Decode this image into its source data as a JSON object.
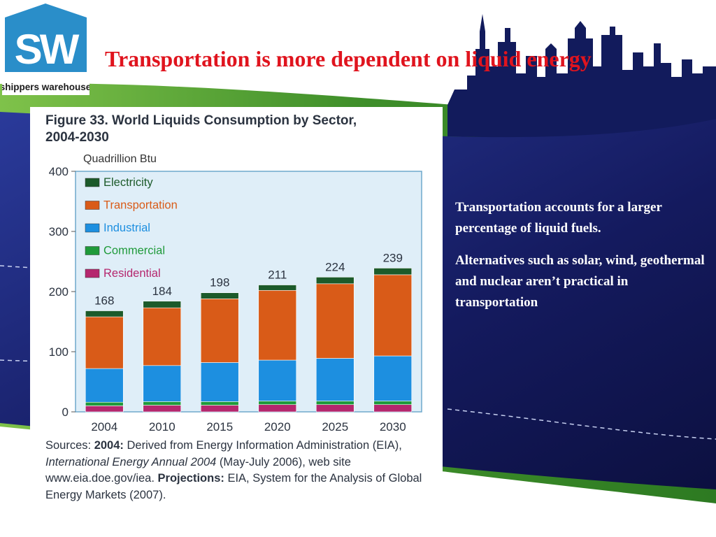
{
  "slide": {
    "title": "Transportation is more dependent on liquid energy",
    "logo_text": "shippers warehouse",
    "logo_letters": "SW",
    "body_paragraphs": [
      "Transportation accounts for a larger percentage of liquid fuels.",
      "Alternatives such as solar, wind, geothermal and nuclear aren’t practical in transportation"
    ]
  },
  "figure": {
    "title_line1": "Figure 33.  World Liquids Consumption by Sector,",
    "title_line2": "2004-2030",
    "unit": "Quadrillion Btu",
    "sources": {
      "prefix": "Sources: ",
      "label1": "2004:",
      "text1": " Derived from Energy Information Administration (EIA), ",
      "italic": "International Energy Annual 2004",
      "text2": " (May-July 2006), web site www.eia.doe.gov/iea. ",
      "label2": "Projections:",
      "text3": " EIA, System for the Analysis of Global Energy Markets (2007)."
    }
  },
  "colors": {
    "accent_title": "#e0141e",
    "navy_background": "#1a2070",
    "green_band": "#3c8a2a"
  },
  "chart_data": {
    "type": "bar",
    "stacked": true,
    "title": "Figure 33.  World Liquids Consumption by Sector, 2004-2030",
    "ylabel": "Quadrillion Btu",
    "xlabel": "",
    "ylim": [
      0,
      400
    ],
    "yticks": [
      0,
      100,
      200,
      300,
      400
    ],
    "categories": [
      "2004",
      "2010",
      "2015",
      "2020",
      "2025",
      "2030"
    ],
    "totals": [
      168,
      184,
      198,
      211,
      224,
      239
    ],
    "legend_position": "top-left",
    "grid": false,
    "series": [
      {
        "name": "Residential",
        "color": "#b5276e",
        "values": [
          10,
          11,
          11,
          12,
          12,
          12
        ]
      },
      {
        "name": "Commercial",
        "color": "#1f9a3a",
        "values": [
          6,
          6,
          6,
          6,
          6,
          6
        ]
      },
      {
        "name": "Industrial",
        "color": "#1d8fe0",
        "values": [
          56,
          60,
          65,
          68,
          71,
          75
        ]
      },
      {
        "name": "Transportation",
        "color": "#d95b18",
        "values": [
          86,
          96,
          106,
          116,
          124,
          135
        ]
      },
      {
        "name": "Electricity",
        "color": "#1c5a2a",
        "values": [
          10,
          11,
          10,
          9,
          11,
          11
        ]
      }
    ],
    "legend_order": [
      "Electricity",
      "Transportation",
      "Industrial",
      "Commercial",
      "Residential"
    ],
    "legend_text_colors": {
      "Electricity": "#1c5a2a",
      "Transportation": "#d95b18",
      "Industrial": "#1d8fe0",
      "Commercial": "#1f9a3a",
      "Residential": "#b5276e"
    }
  }
}
